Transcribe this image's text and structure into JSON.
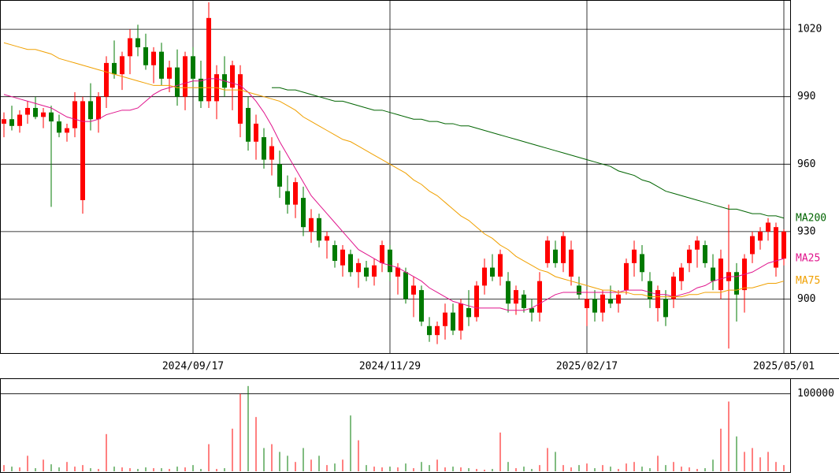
{
  "chart_data": [
    {
      "type": "candlestick",
      "categories": [
        null,
        null,
        null,
        null,
        null,
        null,
        null,
        null,
        null,
        null,
        null,
        null,
        null,
        null,
        null,
        null,
        null,
        null,
        null,
        null,
        null,
        null,
        null,
        null,
        "2024/09/17",
        null,
        null,
        null,
        null,
        null,
        null,
        null,
        null,
        null,
        null,
        null,
        null,
        null,
        null,
        null,
        null,
        null,
        null,
        null,
        null,
        null,
        null,
        null,
        null,
        "2024/11/29",
        null,
        null,
        null,
        null,
        null,
        null,
        null,
        null,
        null,
        null,
        null,
        null,
        null,
        null,
        null,
        null,
        null,
        null,
        null,
        null,
        null,
        null,
        null,
        null,
        "2025/02/17",
        null,
        null,
        null,
        null,
        null,
        null,
        null,
        null,
        null,
        null,
        null,
        null,
        null,
        null,
        null,
        null,
        null,
        null,
        null,
        null,
        null,
        null,
        null,
        null,
        "2025/05/01"
      ],
      "open": [
        978,
        980,
        977,
        982,
        985,
        981,
        983,
        979,
        974,
        976,
        944,
        988,
        980,
        990,
        1005,
        1000,
        1008,
        1016,
        1012,
        1004,
        1010,
        998,
        1003,
        990,
        1008,
        998,
        988,
        988,
        1000,
        994,
        978,
        985,
        970,
        972,
        962,
        960,
        948,
        942,
        945,
        930,
        936,
        926,
        924,
        915,
        920,
        912,
        914,
        910,
        916,
        922,
        910,
        912,
        902,
        904,
        888,
        884,
        888,
        894,
        886,
        896,
        892,
        906,
        914,
        910,
        908,
        898,
        902,
        896,
        894,
        916,
        922,
        916,
        910,
        906,
        896,
        900,
        894,
        900,
        898,
        904,
        916,
        920,
        908,
        896,
        900,
        900,
        908,
        916,
        922,
        924,
        914,
        904,
        908,
        912,
        904,
        920,
        926,
        930,
        914,
        918
      ],
      "high": [
        983,
        986,
        984,
        988,
        990,
        985,
        986,
        982,
        978,
        992,
        990,
        996,
        992,
        1008,
        1015,
        1010,
        1020,
        1022,
        1018,
        1012,
        1014,
        1006,
        1011,
        1010,
        1012,
        1006,
        1032,
        1004,
        1008,
        1006,
        1004,
        990,
        982,
        976,
        972,
        966,
        955,
        954,
        950,
        940,
        938,
        930,
        926,
        924,
        922,
        918,
        917,
        918,
        926,
        924,
        916,
        914,
        910,
        906,
        892,
        890,
        898,
        898,
        900,
        904,
        908,
        918,
        920,
        922,
        912,
        906,
        904,
        900,
        912,
        928,
        926,
        930,
        926,
        910,
        904,
        904,
        904,
        906,
        904,
        918,
        926,
        924,
        912,
        906,
        904,
        912,
        916,
        924,
        928,
        926,
        920,
        922,
        942,
        916,
        920,
        930,
        932,
        936,
        934,
        931
      ],
      "low": [
        972,
        975,
        974,
        978,
        980,
        976,
        941,
        972,
        970,
        972,
        938,
        975,
        974,
        985,
        998,
        993,
        1000,
        1008,
        1002,
        996,
        995,
        992,
        986,
        984,
        995,
        985,
        985,
        980,
        990,
        984,
        972,
        966,
        962,
        958,
        955,
        945,
        938,
        936,
        928,
        925,
        923,
        918,
        914,
        910,
        910,
        905,
        908,
        906,
        912,
        908,
        902,
        898,
        892,
        888,
        881,
        880,
        882,
        884,
        882,
        888,
        890,
        902,
        908,
        906,
        894,
        893,
        894,
        890,
        890,
        914,
        914,
        912,
        906,
        900,
        888,
        890,
        890,
        896,
        894,
        902,
        910,
        908,
        896,
        890,
        888,
        896,
        904,
        912,
        914,
        914,
        904,
        900,
        878,
        890,
        894,
        916,
        922,
        926,
        910,
        915
      ],
      "close": [
        980,
        977,
        982,
        985,
        981,
        983,
        979,
        974,
        976,
        988,
        988,
        980,
        990,
        1005,
        1000,
        1008,
        1016,
        1012,
        1004,
        1010,
        998,
        1003,
        990,
        1008,
        998,
        988,
        1025,
        1000,
        994,
        1004,
        1000,
        970,
        978,
        962,
        968,
        950,
        942,
        952,
        932,
        936,
        926,
        928,
        917,
        922,
        912,
        916,
        910,
        915,
        924,
        912,
        914,
        900,
        906,
        890,
        884,
        888,
        894,
        886,
        898,
        892,
        906,
        914,
        910,
        920,
        898,
        904,
        896,
        894,
        908,
        926,
        916,
        928,
        922,
        902,
        900,
        894,
        902,
        898,
        902,
        916,
        922,
        912,
        900,
        904,
        892,
        910,
        914,
        922,
        926,
        916,
        908,
        918,
        912,
        902,
        918,
        928,
        930,
        934,
        932,
        930
      ],
      "up_color": "#ff0000",
      "down_color": "#007a00",
      "ylim": [
        876,
        1033
      ],
      "yticks": [
        900,
        930,
        960,
        990,
        1020
      ],
      "grid": true,
      "series": [
        {
          "name": "MA200",
          "color": "#006400",
          "values": [
            null,
            null,
            null,
            null,
            null,
            null,
            null,
            null,
            null,
            null,
            null,
            null,
            null,
            null,
            null,
            null,
            null,
            null,
            null,
            null,
            null,
            null,
            null,
            null,
            null,
            null,
            null,
            null,
            null,
            null,
            null,
            null,
            null,
            null,
            994,
            994,
            993,
            993,
            992,
            991,
            990,
            989,
            988,
            988,
            987,
            986,
            985,
            984,
            984,
            983,
            982,
            981,
            980,
            980,
            979,
            979,
            978,
            978,
            977,
            977,
            976,
            975,
            974,
            973,
            972,
            971,
            970,
            969,
            968,
            967,
            966,
            965,
            964,
            963,
            962,
            961,
            960,
            959,
            957,
            956,
            955,
            953,
            952,
            950,
            948,
            947,
            946,
            945,
            944,
            943,
            942,
            941,
            940,
            940,
            939,
            938,
            938,
            937,
            937,
            936
          ]
        },
        {
          "name": "MA25",
          "color": "#e0148c",
          "values": [
            991,
            990,
            989,
            988,
            987,
            986,
            985,
            983,
            981,
            980,
            979,
            979,
            980,
            982,
            983,
            984,
            984,
            985,
            988,
            991,
            993,
            994,
            995,
            996,
            997,
            997,
            998,
            998,
            997,
            996,
            995,
            992,
            988,
            983,
            977,
            970,
            964,
            958,
            952,
            946,
            942,
            938,
            934,
            930,
            926,
            922,
            920,
            918,
            916,
            915,
            914,
            912,
            910,
            908,
            905,
            903,
            901,
            899,
            898,
            897,
            896,
            896,
            896,
            896,
            895,
            895,
            895,
            896,
            898,
            900,
            902,
            903,
            903,
            903,
            903,
            903,
            903,
            903,
            903,
            904,
            904,
            904,
            903,
            902,
            902,
            901,
            902,
            903,
            905,
            906,
            908,
            909,
            910,
            910,
            911,
            912,
            914,
            916,
            917,
            918
          ]
        },
        {
          "name": "MA75",
          "color": "#f0a000",
          "values": [
            1014,
            1013,
            1012,
            1011,
            1011,
            1010,
            1009,
            1007,
            1006,
            1005,
            1004,
            1003,
            1002,
            1001,
            1000,
            999,
            998,
            997,
            996,
            995,
            995,
            995,
            994,
            994,
            994,
            994,
            994,
            994,
            993,
            993,
            993,
            992,
            991,
            990,
            989,
            988,
            986,
            984,
            981,
            979,
            977,
            975,
            973,
            971,
            970,
            968,
            966,
            964,
            962,
            960,
            958,
            956,
            953,
            951,
            948,
            946,
            943,
            940,
            937,
            935,
            932,
            929,
            927,
            924,
            922,
            919,
            917,
            915,
            913,
            912,
            910,
            909,
            908,
            907,
            906,
            905,
            904,
            904,
            903,
            903,
            902,
            902,
            901,
            901,
            901,
            901,
            901,
            902,
            902,
            903,
            903,
            903,
            904,
            904,
            905,
            905,
            906,
            907,
            907,
            908
          ]
        }
      ]
    },
    {
      "type": "bar",
      "values": [
        8000,
        6000,
        5000,
        20000,
        4000,
        15000,
        9000,
        5000,
        12000,
        6000,
        8000,
        4000,
        3000,
        48000,
        6000,
        5000,
        4000,
        3000,
        5000,
        4000,
        4000,
        3000,
        6000,
        5000,
        8000,
        3000,
        35000,
        3000,
        4000,
        55000,
        100000,
        110000,
        70000,
        30000,
        35000,
        25000,
        20000,
        12000,
        30000,
        15000,
        20000,
        8000,
        10000,
        15000,
        72000,
        40000,
        8000,
        6000,
        5000,
        6000,
        5000,
        10000,
        4000,
        12000,
        8000,
        15000,
        5000,
        6000,
        5000,
        4000,
        3000,
        2000,
        3000,
        50000,
        12000,
        4000,
        6000,
        3000,
        8000,
        30000,
        25000,
        8000,
        5000,
        8000,
        10000,
        4000,
        8000,
        6000,
        3000,
        10000,
        12000,
        6000,
        4000,
        20000,
        8000,
        12000,
        6000,
        5000,
        3000,
        4000,
        15000,
        55000,
        90000,
        45000,
        25000,
        30000,
        18000,
        25000,
        12000,
        8000
      ],
      "ylim": [
        0,
        120000
      ],
      "yticks": [
        100000
      ],
      "grid": true
    }
  ]
}
